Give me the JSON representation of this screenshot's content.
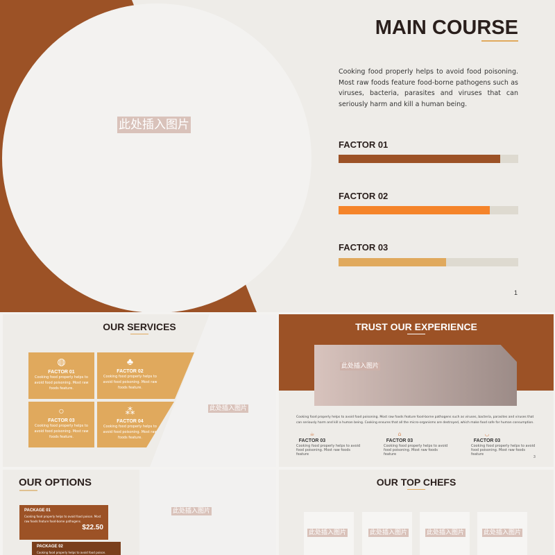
{
  "colors": {
    "brown": "#9c5226",
    "orange": "#f5842a",
    "tan": "#e0a95d",
    "dark_brown": "#7a3f1c"
  },
  "placeholder": "此处插入图片",
  "main": {
    "title": "MAIN COURSE",
    "body": "Cooking food properly helps to avoid food poisoning. Most raw foods feature food-borne pathogens such as viruses, bacteria, parasites and viruses that can seriously harm and kill a human being.",
    "factors": [
      {
        "label": "FACTOR 01",
        "progress": 0.9
      },
      {
        "label": "FACTOR 02",
        "progress": 0.84
      },
      {
        "label": "FACTOR 03",
        "progress": 0.6
      }
    ],
    "page": "1"
  },
  "services": {
    "title": "OUR SERVICES",
    "cards": [
      {
        "icon": "pizza-icon",
        "title": "FACTOR 01",
        "text": "Cooking food properly helps to avoid food poisoning. Most raw foods feature."
      },
      {
        "icon": "pineapple-icon",
        "title": "FACTOR 02",
        "text": "Cooking food properly helps to avoid food poisoning. Most raw foods feature."
      },
      {
        "icon": "apple-icon",
        "title": "FACTOR 03",
        "text": "Cooking food properly helps to avoid food poisoning. Most raw foods feature."
      },
      {
        "icon": "grapes-icon",
        "title": "FACTOR 04",
        "text": "Cooking food properly helps to avoid food poisoning. Most raw foods feature."
      }
    ]
  },
  "experience": {
    "title": "TRUST OUR EXPERIENCE",
    "body": "Cooking food properly helps to avoid food poisoning. Most raw foods feature food-borne pathogens such as viruses, bacteria, parasites and viruses that can seriously harm and kill a human being. Cooking ensures that all the micro-organisms are destroyed, which make food safe for human consumption.",
    "items": [
      {
        "icon": "cup-icon",
        "title": "FACTOR 03",
        "text": "Cooking food properly helps to avoid food poisoning. Most raw foods feature"
      },
      {
        "icon": "teapot-icon",
        "title": "FACTOR 03",
        "text": "Cooking food properly helps to avoid food poisoning. Most raw foods feature"
      },
      {
        "icon": "bowl-icon",
        "title": "FACTOR 03",
        "text": "Cooking food properly helps to avoid food poisoning. Most raw foods feature"
      }
    ],
    "page": "3"
  },
  "options": {
    "title": "OUR OPTIONS",
    "packages": [
      {
        "title": "PACKAGE 01",
        "text": "Cooking food properly helps to avoid food poison. Most raw foods feature food-borne pathogens.",
        "price": "$22.50"
      },
      {
        "title": "PACKAGE 02",
        "text": "Cooking food properly helps to avoid food poison."
      }
    ]
  },
  "chefs": {
    "title": "OUR TOP CHEFS"
  }
}
